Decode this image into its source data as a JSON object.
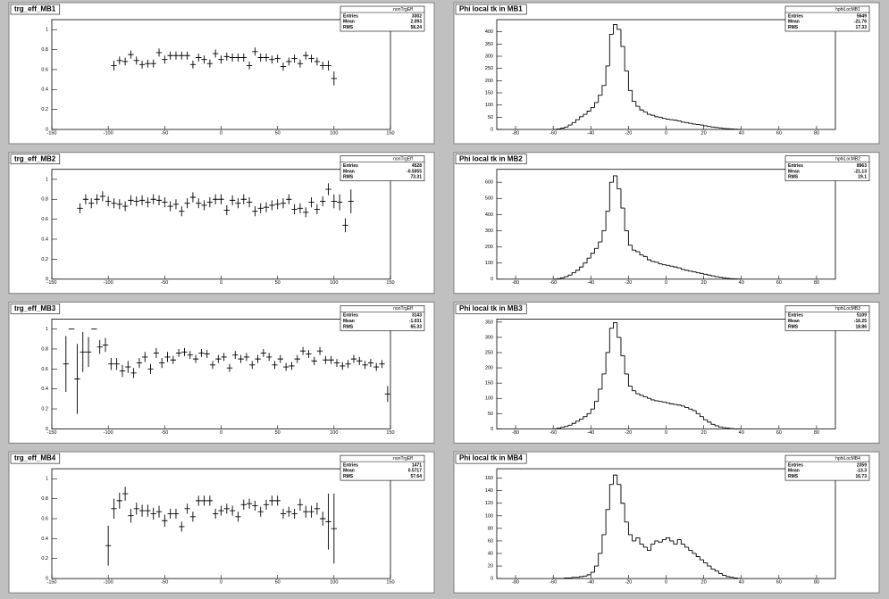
{
  "chart_data": [
    {
      "type": "errorbar",
      "title": "trg_eff_MB1",
      "stats": {
        "title": "nonTrgEff",
        "labels": [
          "Entries",
          "Mean",
          "RMS"
        ],
        "values": [
          3302,
          2.093,
          58.24
        ]
      },
      "xlim": [
        -150,
        150
      ],
      "ylim": [
        0,
        1.1
      ],
      "xticks": [
        -150,
        -100,
        -50,
        0,
        50,
        100,
        150
      ],
      "yticks": [
        0,
        0.2,
        0.4,
        0.6,
        0.8,
        1
      ],
      "xerror": 2.5,
      "color": "#000000",
      "x": [
        -95,
        -90,
        -85,
        -80,
        -75,
        -70,
        -65,
        -60,
        -55,
        -50,
        -45,
        -40,
        -35,
        -30,
        -25,
        -20,
        -15,
        -10,
        -5,
        0,
        5,
        10,
        15,
        20,
        25,
        30,
        35,
        40,
        45,
        50,
        55,
        60,
        65,
        70,
        75,
        80,
        85,
        90,
        95,
        100
      ],
      "values": [
        0.64,
        0.69,
        0.68,
        0.75,
        0.69,
        0.65,
        0.66,
        0.66,
        0.77,
        0.7,
        0.74,
        0.74,
        0.74,
        0.74,
        0.65,
        0.72,
        0.7,
        0.66,
        0.76,
        0.7,
        0.73,
        0.72,
        0.72,
        0.72,
        0.64,
        0.78,
        0.72,
        0.72,
        0.7,
        0.71,
        0.63,
        0.68,
        0.71,
        0.66,
        0.74,
        0.71,
        0.68,
        0.64,
        0.64,
        0.51
      ],
      "errors": [
        0.05,
        0.04,
        0.04,
        0.04,
        0.04,
        0.04,
        0.04,
        0.04,
        0.04,
        0.04,
        0.04,
        0.04,
        0.04,
        0.04,
        0.04,
        0.04,
        0.04,
        0.04,
        0.04,
        0.04,
        0.04,
        0.04,
        0.04,
        0.04,
        0.04,
        0.04,
        0.04,
        0.04,
        0.04,
        0.04,
        0.04,
        0.04,
        0.04,
        0.04,
        0.04,
        0.04,
        0.04,
        0.04,
        0.05,
        0.07
      ]
    },
    {
      "type": "histogram",
      "title": "Phi local tk in MB1",
      "stats": {
        "title": "hphiLocMB1",
        "labels": [
          "Entries",
          "Mean",
          "RMS"
        ],
        "values": [
          5649,
          -21.76,
          17.33
        ]
      },
      "xlim": [
        -90,
        90
      ],
      "ylim": [
        0,
        450
      ],
      "xticks": [
        -80,
        -60,
        -40,
        -20,
        0,
        20,
        40,
        60,
        80
      ],
      "yticks": [
        0,
        50,
        100,
        150,
        200,
        250,
        300,
        350,
        400
      ],
      "color": "#000000",
      "bins": [
        -60,
        -58,
        -56,
        -54,
        -52,
        -50,
        -48,
        -46,
        -44,
        -42,
        -40,
        -38,
        -36,
        -34,
        -32,
        -30,
        -28,
        -26,
        -24,
        -22,
        -20,
        -18,
        -16,
        -14,
        -12,
        -10,
        -8,
        -6,
        -4,
        -2,
        0,
        2,
        4,
        6,
        8,
        10,
        12,
        14,
        16,
        18,
        20,
        22,
        24,
        26,
        28,
        30,
        32,
        34,
        36,
        38,
        40
      ],
      "values": [
        0,
        2,
        5,
        10,
        18,
        28,
        40,
        52,
        62,
        75,
        90,
        110,
        140,
        180,
        260,
        390,
        430,
        410,
        340,
        240,
        160,
        115,
        95,
        80,
        72,
        62,
        58,
        52,
        50,
        45,
        42,
        40,
        38,
        35,
        30,
        28,
        25,
        22,
        20,
        18,
        15,
        12,
        10,
        8,
        6,
        4,
        3,
        2,
        1,
        0
      ]
    },
    {
      "type": "errorbar",
      "title": "trg_eff_MB2",
      "stats": {
        "title": "nonTrgEff",
        "labels": [
          "Entries",
          "Mean",
          "RMS"
        ],
        "values": [
          4528,
          -0.5055,
          73.31
        ]
      },
      "xlim": [
        -150,
        150
      ],
      "ylim": [
        0,
        1.1
      ],
      "xticks": [
        -150,
        -100,
        -50,
        0,
        50,
        100,
        150
      ],
      "yticks": [
        0,
        0.2,
        0.4,
        0.6,
        0.8,
        1
      ],
      "xerror": 2.5,
      "color": "#000000",
      "x": [
        -125,
        -120,
        -115,
        -110,
        -105,
        -100,
        -95,
        -90,
        -85,
        -80,
        -75,
        -70,
        -65,
        -60,
        -55,
        -50,
        -45,
        -40,
        -35,
        -30,
        -25,
        -20,
        -15,
        -10,
        -5,
        0,
        5,
        10,
        15,
        20,
        25,
        30,
        35,
        40,
        45,
        50,
        55,
        60,
        65,
        70,
        75,
        80,
        85,
        90,
        95,
        100,
        105,
        110,
        115
      ],
      "values": [
        0.71,
        0.8,
        0.76,
        0.8,
        0.83,
        0.78,
        0.76,
        0.75,
        0.73,
        0.79,
        0.78,
        0.79,
        0.77,
        0.8,
        0.79,
        0.77,
        0.73,
        0.75,
        0.68,
        0.76,
        0.82,
        0.76,
        0.74,
        0.77,
        0.8,
        0.8,
        0.69,
        0.79,
        0.76,
        0.8,
        0.77,
        0.68,
        0.71,
        0.72,
        0.74,
        0.75,
        0.76,
        0.8,
        0.7,
        0.71,
        0.67,
        0.77,
        0.7,
        0.78,
        0.9,
        0.78,
        0.77,
        0.54,
        0.78
      ],
      "errors": [
        0.05,
        0.05,
        0.05,
        0.05,
        0.05,
        0.05,
        0.05,
        0.05,
        0.05,
        0.05,
        0.05,
        0.05,
        0.05,
        0.05,
        0.05,
        0.05,
        0.05,
        0.05,
        0.05,
        0.05,
        0.05,
        0.05,
        0.05,
        0.05,
        0.05,
        0.05,
        0.05,
        0.05,
        0.05,
        0.05,
        0.05,
        0.05,
        0.05,
        0.05,
        0.05,
        0.05,
        0.05,
        0.05,
        0.05,
        0.05,
        0.05,
        0.05,
        0.05,
        0.05,
        0.06,
        0.07,
        0.08,
        0.07,
        0.12
      ]
    },
    {
      "type": "histogram",
      "title": "Phi local tk in MB2",
      "stats": {
        "title": "hphiLocMB2",
        "labels": [
          "Entries",
          "Mean",
          "RMS"
        ],
        "values": [
          8963,
          -21.13,
          19.1
        ]
      },
      "xlim": [
        -90,
        90
      ],
      "ylim": [
        0,
        680
      ],
      "xticks": [
        -80,
        -60,
        -40,
        -20,
        0,
        20,
        40,
        60,
        80
      ],
      "yticks": [
        0,
        100,
        200,
        300,
        400,
        500,
        600
      ],
      "color": "#000000",
      "bins": [
        -60,
        -58,
        -56,
        -54,
        -52,
        -50,
        -48,
        -46,
        -44,
        -42,
        -40,
        -38,
        -36,
        -34,
        -32,
        -30,
        -28,
        -26,
        -24,
        -22,
        -20,
        -18,
        -16,
        -14,
        -12,
        -10,
        -8,
        -6,
        -4,
        -2,
        0,
        2,
        4,
        6,
        8,
        10,
        12,
        14,
        16,
        18,
        20,
        22,
        24,
        26,
        28,
        30,
        32,
        34,
        36,
        38,
        40
      ],
      "values": [
        0,
        3,
        8,
        15,
        25,
        40,
        55,
        75,
        100,
        130,
        160,
        190,
        230,
        300,
        420,
        600,
        640,
        560,
        440,
        300,
        210,
        180,
        170,
        150,
        140,
        120,
        110,
        105,
        95,
        90,
        85,
        80,
        75,
        70,
        60,
        55,
        50,
        45,
        40,
        35,
        30,
        25,
        20,
        15,
        12,
        8,
        5,
        3,
        2,
        1
      ]
    },
    {
      "type": "errorbar",
      "title": "trg_eff_MB3",
      "stats": {
        "title": "nonTrgEff",
        "labels": [
          "Entries",
          "Mean",
          "RMS"
        ],
        "values": [
          3143,
          -1.031,
          65.33
        ]
      },
      "xlim": [
        -150,
        150
      ],
      "ylim": [
        0,
        1.1
      ],
      "xticks": [
        -150,
        -100,
        -50,
        0,
        50,
        100,
        150
      ],
      "yticks": [
        0,
        0.2,
        0.4,
        0.6,
        0.8,
        1
      ],
      "xerror": 2.5,
      "color": "#000000",
      "x": [
        -137.5,
        -132.5,
        -127.5,
        -122.5,
        -117.5,
        -112.5,
        -107.5,
        -102.5,
        -97.5,
        -92.5,
        -87.5,
        -82.5,
        -77.5,
        -72.5,
        -67.5,
        -62.5,
        -57.5,
        -52.5,
        -47.5,
        -42.5,
        -37.5,
        -32.5,
        -27.5,
        -22.5,
        -17.5,
        -12.5,
        -7.5,
        -2.5,
        2.5,
        7.5,
        12.5,
        17.5,
        22.5,
        27.5,
        32.5,
        37.5,
        42.5,
        47.5,
        52.5,
        57.5,
        62.5,
        67.5,
        72.5,
        77.5,
        82.5,
        87.5,
        92.5,
        97.5,
        102.5,
        107.5,
        112.5,
        117.5,
        122.5,
        127.5,
        132.5,
        137.5,
        142.5,
        147.5
      ],
      "values": [
        0.65,
        1,
        0.5,
        0.77,
        0.77,
        1,
        0.82,
        0.84,
        0.65,
        0.65,
        0.58,
        0.62,
        0.56,
        0.66,
        0.72,
        0.6,
        0.76,
        0.66,
        0.72,
        0.69,
        0.76,
        0.77,
        0.74,
        0.7,
        0.76,
        0.75,
        0.64,
        0.7,
        0.72,
        0.61,
        0.74,
        0.7,
        0.72,
        0.64,
        0.7,
        0.76,
        0.72,
        0.64,
        0.7,
        0.62,
        0.63,
        0.7,
        0.78,
        0.75,
        0.68,
        0.78,
        0.69,
        0.69,
        0.66,
        0.63,
        0.65,
        0.7,
        0.68,
        0.64,
        0.66,
        0.62,
        0.65,
        0.35
      ],
      "errors": [
        0.28,
        0,
        0.35,
        0.2,
        0.15,
        0,
        0.07,
        0.07,
        0.06,
        0.06,
        0.06,
        0.06,
        0.05,
        0.05,
        0.05,
        0.05,
        0.05,
        0.05,
        0.05,
        0.04,
        0.04,
        0.04,
        0.04,
        0.04,
        0.04,
        0.04,
        0.04,
        0.04,
        0.04,
        0.04,
        0.04,
        0.04,
        0.04,
        0.04,
        0.04,
        0.04,
        0.04,
        0.04,
        0.04,
        0.04,
        0.04,
        0.04,
        0.04,
        0.04,
        0.04,
        0.04,
        0.04,
        0.04,
        0.04,
        0.04,
        0.04,
        0.04,
        0.04,
        0.04,
        0.04,
        0.04,
        0.04,
        0.08
      ]
    },
    {
      "type": "histogram",
      "title": "Phi local tk in MB3",
      "stats": {
        "title": "hphiLocMB3",
        "labels": [
          "Entries",
          "Mean",
          "RMS"
        ],
        "values": [
          5109,
          -16.25,
          18.86
        ]
      },
      "xlim": [
        -90,
        90
      ],
      "ylim": [
        0,
        360
      ],
      "xticks": [
        -80,
        -60,
        -40,
        -20,
        0,
        20,
        40,
        60,
        80
      ],
      "yticks": [
        0,
        50,
        100,
        150,
        200,
        250,
        300,
        350
      ],
      "color": "#000000",
      "bins": [
        -60,
        -58,
        -56,
        -54,
        -52,
        -50,
        -48,
        -46,
        -44,
        -42,
        -40,
        -38,
        -36,
        -34,
        -32,
        -30,
        -28,
        -26,
        -24,
        -22,
        -20,
        -18,
        -16,
        -14,
        -12,
        -10,
        -8,
        -6,
        -4,
        -2,
        0,
        2,
        4,
        6,
        8,
        10,
        12,
        14,
        16,
        18,
        20,
        22,
        24,
        26,
        28,
        30,
        32,
        34,
        36,
        38,
        40
      ],
      "values": [
        0,
        2,
        5,
        8,
        12,
        18,
        25,
        32,
        40,
        50,
        65,
        90,
        130,
        180,
        250,
        330,
        348,
        300,
        240,
        180,
        140,
        125,
        115,
        110,
        105,
        100,
        95,
        92,
        90,
        88,
        85,
        82,
        80,
        78,
        75,
        70,
        65,
        60,
        50,
        40,
        30,
        22,
        15,
        10,
        6,
        4,
        2,
        1,
        0,
        0
      ]
    },
    {
      "type": "errorbar",
      "title": "trg_eff_MB4",
      "stats": {
        "title": "nonTrgEff",
        "labels": [
          "Entries",
          "Mean",
          "RMS"
        ],
        "values": [
          1471,
          0.5717,
          57.64
        ]
      },
      "xlim": [
        -150,
        150
      ],
      "ylim": [
        0,
        1.1
      ],
      "xticks": [
        -150,
        -100,
        -50,
        0,
        50,
        100,
        150
      ],
      "yticks": [
        0,
        0.2,
        0.4,
        0.6,
        0.8,
        1
      ],
      "xerror": 2.5,
      "color": "#000000",
      "x": [
        -100,
        -95,
        -90,
        -85,
        -80,
        -75,
        -70,
        -65,
        -60,
        -55,
        -50,
        -45,
        -40,
        -35,
        -30,
        -25,
        -20,
        -15,
        -10,
        -5,
        0,
        5,
        10,
        15,
        20,
        25,
        30,
        35,
        40,
        45,
        50,
        55,
        60,
        65,
        70,
        75,
        80,
        85,
        90,
        95,
        100
      ],
      "values": [
        0.33,
        0.7,
        0.78,
        0.85,
        0.63,
        0.7,
        0.68,
        0.68,
        0.65,
        0.67,
        0.58,
        0.65,
        0.65,
        0.52,
        0.7,
        0.62,
        0.78,
        0.78,
        0.78,
        0.65,
        0.68,
        0.7,
        0.68,
        0.62,
        0.74,
        0.75,
        0.73,
        0.67,
        0.74,
        0.78,
        0.78,
        0.65,
        0.67,
        0.65,
        0.74,
        0.67,
        0.67,
        0.7,
        0.6,
        0.57,
        0.5
      ],
      "errors": [
        0.2,
        0.1,
        0.08,
        0.07,
        0.07,
        0.06,
        0.06,
        0.06,
        0.06,
        0.06,
        0.06,
        0.05,
        0.05,
        0.05,
        0.05,
        0.05,
        0.05,
        0.05,
        0.05,
        0.05,
        0.05,
        0.05,
        0.05,
        0.05,
        0.05,
        0.05,
        0.05,
        0.05,
        0.05,
        0.05,
        0.05,
        0.05,
        0.05,
        0.05,
        0.06,
        0.06,
        0.06,
        0.06,
        0.07,
        0.28,
        0.35
      ]
    },
    {
      "type": "histogram",
      "title": "Phi local tk in MB4",
      "stats": {
        "title": "hphiLocMB4",
        "labels": [
          "Entries",
          "Mean",
          "RMS"
        ],
        "values": [
          2359,
          -13.3,
          16.73
        ]
      },
      "xlim": [
        -90,
        90
      ],
      "ylim": [
        0,
        175
      ],
      "xticks": [
        -80,
        -60,
        -40,
        -20,
        0,
        20,
        40,
        60,
        80
      ],
      "yticks": [
        0,
        20,
        40,
        60,
        80,
        100,
        120,
        140,
        160
      ],
      "color": "#000000",
      "bins": [
        -60,
        -58,
        -56,
        -54,
        -52,
        -50,
        -48,
        -46,
        -44,
        -42,
        -40,
        -38,
        -36,
        -34,
        -32,
        -30,
        -28,
        -26,
        -24,
        -22,
        -20,
        -18,
        -16,
        -14,
        -12,
        -10,
        -8,
        -6,
        -4,
        -2,
        0,
        2,
        4,
        6,
        8,
        10,
        12,
        14,
        16,
        18,
        20,
        22,
        24,
        26,
        28,
        30,
        32,
        34,
        36,
        38,
        40
      ],
      "values": [
        0,
        0,
        0,
        1,
        1,
        2,
        2,
        3,
        4,
        6,
        10,
        20,
        40,
        70,
        110,
        150,
        165,
        150,
        120,
        90,
        70,
        60,
        65,
        55,
        50,
        45,
        55,
        60,
        58,
        62,
        65,
        60,
        55,
        62,
        55,
        50,
        45,
        40,
        35,
        30,
        25,
        20,
        15,
        12,
        8,
        5,
        3,
        2,
        1,
        0
      ]
    }
  ]
}
